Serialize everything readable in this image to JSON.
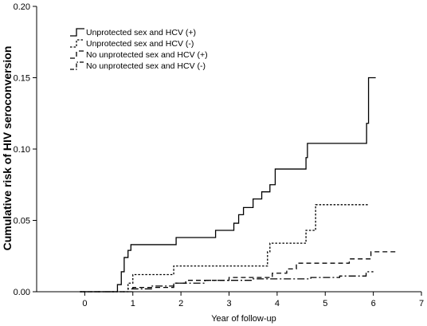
{
  "chart_data": {
    "type": "line",
    "step": true,
    "title": "",
    "xlabel": "Year of follow-up",
    "ylabel": "Cumulative risk of HIV seroconversion",
    "xlim": [
      -1,
      7
    ],
    "ylim": [
      0,
      0.2
    ],
    "xticks": [
      "0",
      "1",
      "2",
      "3",
      "4",
      "5",
      "6",
      "7"
    ],
    "yticks": [
      "0.00",
      "0.05",
      "0.10",
      "0.15",
      "0.20"
    ],
    "legend_position": "top-left",
    "grid": false,
    "series": [
      {
        "name": "Unprotected sex and HCV (+)",
        "line_style": "solid",
        "color": "#000000",
        "points": [
          [
            -0.1,
            0
          ],
          [
            0.68,
            0
          ],
          [
            0.68,
            0.005
          ],
          [
            0.76,
            0.005
          ],
          [
            0.76,
            0.014
          ],
          [
            0.82,
            0.014
          ],
          [
            0.82,
            0.024
          ],
          [
            0.9,
            0.024
          ],
          [
            0.9,
            0.029
          ],
          [
            0.96,
            0.029
          ],
          [
            0.96,
            0.033
          ],
          [
            1.9,
            0.033
          ],
          [
            1.9,
            0.038
          ],
          [
            2.72,
            0.038
          ],
          [
            2.72,
            0.043
          ],
          [
            3.1,
            0.043
          ],
          [
            3.1,
            0.048
          ],
          [
            3.2,
            0.048
          ],
          [
            3.2,
            0.054
          ],
          [
            3.3,
            0.054
          ],
          [
            3.3,
            0.059
          ],
          [
            3.5,
            0.059
          ],
          [
            3.5,
            0.065
          ],
          [
            3.68,
            0.065
          ],
          [
            3.68,
            0.07
          ],
          [
            3.85,
            0.07
          ],
          [
            3.85,
            0.075
          ],
          [
            3.96,
            0.075
          ],
          [
            3.96,
            0.086
          ],
          [
            4.6,
            0.086
          ],
          [
            4.6,
            0.094
          ],
          [
            4.63,
            0.094
          ],
          [
            4.63,
            0.104
          ],
          [
            5.86,
            0.104
          ],
          [
            5.86,
            0.118
          ],
          [
            5.9,
            0.118
          ],
          [
            5.9,
            0.15
          ],
          [
            6.05,
            0.15
          ]
        ]
      },
      {
        "name": "Unprotected sex and HCV (-)",
        "line_style": "dotted",
        "color": "#000000",
        "points": [
          [
            -0.1,
            0
          ],
          [
            0.9,
            0
          ],
          [
            0.9,
            0.006
          ],
          [
            1.0,
            0.006
          ],
          [
            1.0,
            0.012
          ],
          [
            1.85,
            0.012
          ],
          [
            1.85,
            0.018
          ],
          [
            3.8,
            0.018
          ],
          [
            3.8,
            0.028
          ],
          [
            3.85,
            0.028
          ],
          [
            3.85,
            0.034
          ],
          [
            4.6,
            0.034
          ],
          [
            4.6,
            0.043
          ],
          [
            4.8,
            0.043
          ],
          [
            4.8,
            0.061
          ],
          [
            5.9,
            0.061
          ]
        ]
      },
      {
        "name": "No unprotected sex and HCV (+)",
        "line_style": "dashed",
        "color": "#000000",
        "points": [
          [
            -0.1,
            0
          ],
          [
            1.0,
            0
          ],
          [
            1.0,
            0.003
          ],
          [
            1.85,
            0.003
          ],
          [
            1.85,
            0.006
          ],
          [
            2.1,
            0.006
          ],
          [
            2.1,
            0.008
          ],
          [
            3.0,
            0.008
          ],
          [
            3.0,
            0.01
          ],
          [
            3.9,
            0.01
          ],
          [
            3.9,
            0.013
          ],
          [
            4.2,
            0.013
          ],
          [
            4.2,
            0.016
          ],
          [
            4.4,
            0.016
          ],
          [
            4.4,
            0.02
          ],
          [
            5.5,
            0.02
          ],
          [
            5.5,
            0.023
          ],
          [
            5.95,
            0.023
          ],
          [
            5.95,
            0.028
          ],
          [
            6.5,
            0.028
          ]
        ]
      },
      {
        "name": "No unprotected sex and HCV (-)",
        "line_style": "dashdot",
        "color": "#000000",
        "points": [
          [
            -0.1,
            0
          ],
          [
            0.9,
            0
          ],
          [
            0.9,
            0.002
          ],
          [
            1.4,
            0.002
          ],
          [
            1.4,
            0.004
          ],
          [
            1.85,
            0.004
          ],
          [
            1.85,
            0.006
          ],
          [
            2.5,
            0.006
          ],
          [
            2.5,
            0.008
          ],
          [
            3.5,
            0.008
          ],
          [
            3.5,
            0.009
          ],
          [
            4.7,
            0.009
          ],
          [
            4.7,
            0.01
          ],
          [
            5.3,
            0.01
          ],
          [
            5.3,
            0.011
          ],
          [
            5.85,
            0.011
          ],
          [
            5.85,
            0.014
          ],
          [
            6.0,
            0.014
          ]
        ]
      }
    ]
  }
}
